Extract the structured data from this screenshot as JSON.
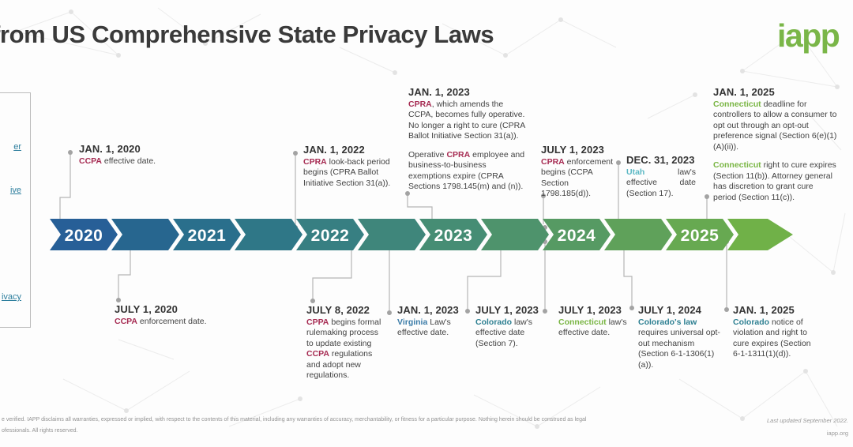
{
  "header": {
    "title": "from US Comprehensive State Privacy Laws",
    "logo": "iapp"
  },
  "legend": {
    "items": [
      "er",
      "ive",
      "ivacy"
    ]
  },
  "colors": {
    "ccpa": "#a62b52",
    "utah": "#5bb8c4",
    "virginia": "#3b7ca8",
    "colorado": "#2e8092",
    "connecticut": "#79b543",
    "logo_green": "#7ab648"
  },
  "timeline": {
    "years": [
      "2020",
      "2021",
      "2022",
      "2023",
      "2024",
      "2025"
    ],
    "segment_colors": [
      "#275f97",
      "#27668f",
      "#2a6f8c",
      "#2f7787",
      "#377f82",
      "#3f867b",
      "#468d74",
      "#4e936c",
      "#569a63",
      "#5fa15a",
      "#67a951",
      "#70b148"
    ]
  },
  "annotations": {
    "top": [
      {
        "date": "JAN. 1, 2020",
        "paras": [
          [
            {
              "t": "CCPA",
              "c": "ccpa"
            },
            {
              "t": " effective date."
            }
          ]
        ]
      },
      {
        "date": "JAN. 1, 2022",
        "paras": [
          [
            {
              "t": "CPRA",
              "c": "ccpa"
            },
            {
              "t": " look-back period begins (CPRA Ballot Initiative Section 31(a))."
            }
          ]
        ]
      },
      {
        "date": "JAN. 1, 2023",
        "paras": [
          [
            {
              "t": "CPRA",
              "c": "ccpa"
            },
            {
              "t": ", which amends the CCPA, becomes fully operative. No longer a right to cure (CPRA Ballot Initiative Section 31(a))."
            }
          ],
          [
            {
              "t": "Operative "
            },
            {
              "t": "CPRA",
              "c": "ccpa"
            },
            {
              "t": " employee and business-to-business exemptions expire (CPRA Sections 1798.145(m) and (n))."
            }
          ]
        ]
      },
      {
        "date": "JULY 1, 2023",
        "paras": [
          [
            {
              "t": "CPRA",
              "c": "ccpa"
            },
            {
              "t": " enforcement begins (CCPA Section 1798.185(d))."
            }
          ]
        ]
      },
      {
        "date": "DEC. 31, 2023",
        "paras": [
          [
            {
              "t": "Utah",
              "c": "utah"
            },
            {
              "t": " law's effective date (Section 17)."
            }
          ]
        ]
      },
      {
        "date": "JAN. 1, 2025",
        "paras": [
          [
            {
              "t": "Connecticut",
              "c": "connecticut"
            },
            {
              "t": " deadline for controllers to allow a consumer to opt out through an opt-out preference signal (Section 6(e)(1)(A)(ii))."
            }
          ],
          [
            {
              "t": "Connecticut",
              "c": "connecticut"
            },
            {
              "t": " right to cure expires (Section 11(b)). Attorney general has discretion to grant cure period (Section 11(c))."
            }
          ]
        ]
      }
    ],
    "bottom": [
      {
        "date": "JULY 1, 2020",
        "paras": [
          [
            {
              "t": "CCPA",
              "c": "ccpa"
            },
            {
              "t": " enforcement date."
            }
          ]
        ]
      },
      {
        "date": "JULY 8, 2022",
        "paras": [
          [
            {
              "t": "CPPA",
              "c": "ccpa"
            },
            {
              "t": " begins formal rulemaking process to update existing "
            },
            {
              "t": "CCPA",
              "c": "ccpa"
            },
            {
              "t": " regulations and adopt new regulations."
            }
          ]
        ]
      },
      {
        "date": "JAN. 1, 2023",
        "paras": [
          [
            {
              "t": "Virginia",
              "c": "virginia"
            },
            {
              "t": " Law's effective date."
            }
          ]
        ]
      },
      {
        "date": "JULY 1, 2023",
        "paras": [
          [
            {
              "t": "Colorado",
              "c": "colorado"
            },
            {
              "t": " law's effective date (Section 7)."
            }
          ]
        ]
      },
      {
        "date": "JULY 1, 2023",
        "paras": [
          [
            {
              "t": "Connecticut",
              "c": "connecticut"
            },
            {
              "t": " law's effective date."
            }
          ]
        ]
      },
      {
        "date": "JULY 1, 2024",
        "paras": [
          [
            {
              "t": "Colorado's law",
              "c": "colorado"
            },
            {
              "t": " requires universal opt-out mechanism (Section 6-1-1306(1)(a))."
            }
          ]
        ]
      },
      {
        "date": "JAN. 1, 2025",
        "paras": [
          [
            {
              "t": "Colorado",
              "c": "colorado"
            },
            {
              "t": " notice of violation and right to cure expires (Section 6-1-1311(1)(d))."
            }
          ]
        ]
      }
    ]
  },
  "footer": {
    "line1": "e verified. IAPP disclaims all warranties, expressed or implied, with respect to the contents of this material, including any warranties of accuracy, merchantability, or fitness for a particular purpose. Nothing herein should be construed as legal",
    "line2": "ofessionals. All rights reserved.",
    "updated": "Last updated September 2022.",
    "site": "iapp.org"
  }
}
